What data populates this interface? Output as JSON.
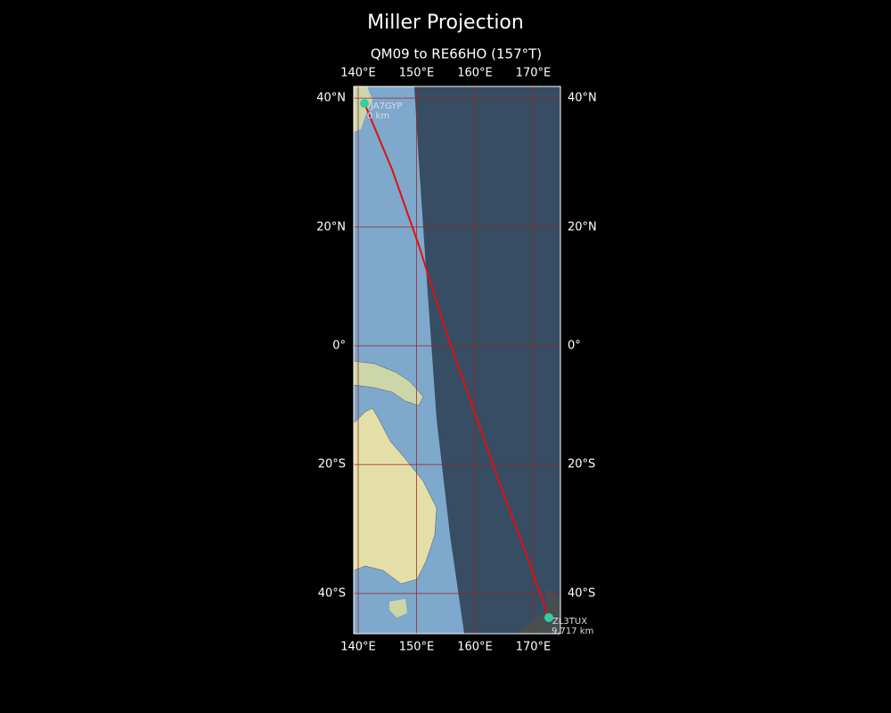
{
  "title": "Miller Projection",
  "subtitle": "QM09 to RE66HO (157°T)",
  "map": {
    "lon_ticks": [
      {
        "value": 140,
        "label": "140°E"
      },
      {
        "value": 150,
        "label": "150°E"
      },
      {
        "value": 160,
        "label": "160°E"
      },
      {
        "value": 170,
        "label": "170°E"
      }
    ],
    "lat_ticks": [
      {
        "value": 40,
        "label": "40°N"
      },
      {
        "value": 20,
        "label": "20°N"
      },
      {
        "value": 0,
        "label": "0°"
      },
      {
        "value": -20,
        "label": "20°S"
      },
      {
        "value": -40,
        "label": "40°S"
      }
    ]
  },
  "stations": [
    {
      "call": "JA7GYP",
      "distance": "0 km"
    },
    {
      "call": "ZL3TUX",
      "distance": "9,717 km"
    }
  ]
}
